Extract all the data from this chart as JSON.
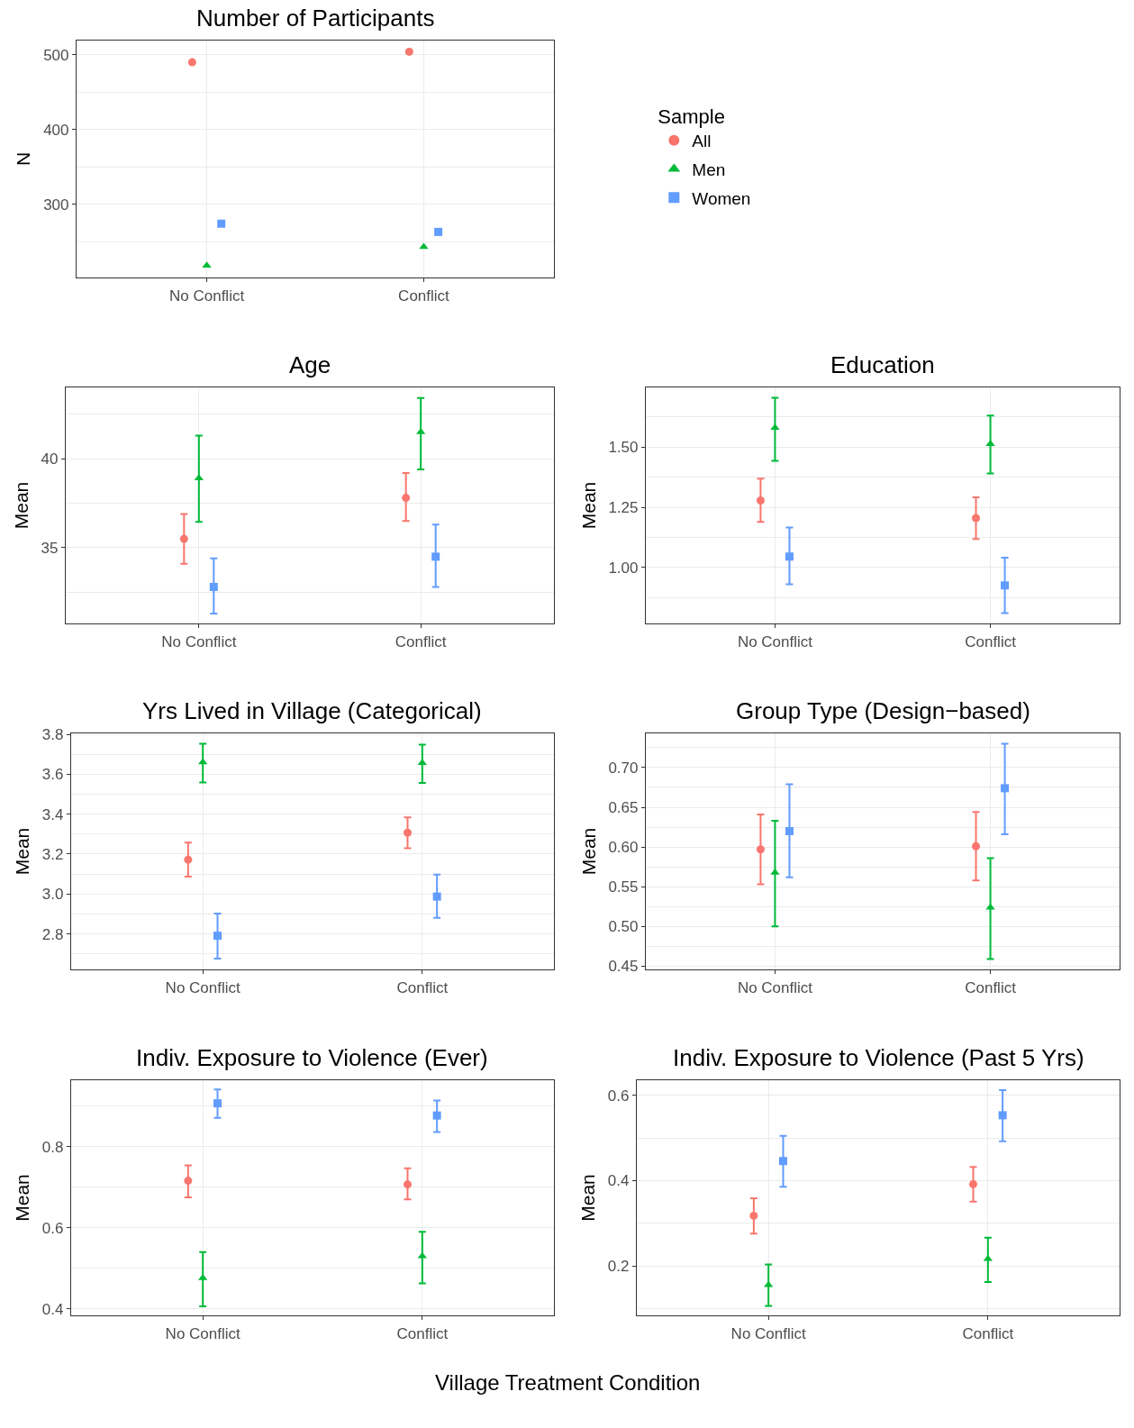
{
  "chart_data": [
    {
      "type": "scatter",
      "title": "Number of Participants",
      "ylabel": "N",
      "categories": [
        "No Conflict",
        "Conflict"
      ],
      "ylim": [
        202,
        519
      ],
      "yticks": [
        300,
        400,
        500
      ],
      "grid": true,
      "legend": "right",
      "legend_title": "Sample",
      "series": [
        {
          "name": "All",
          "color": "#f8766d",
          "marker": "circle",
          "values": [
            490,
            504
          ]
        },
        {
          "name": "Men",
          "color": "#00ba38",
          "marker": "triangle",
          "values": [
            218,
            243
          ]
        },
        {
          "name": "Women",
          "color": "#619cff",
          "marker": "square",
          "values": [
            274,
            263
          ]
        }
      ]
    },
    {
      "type": "scatter",
      "title": "Age",
      "ylabel": "Mean",
      "categories": [
        "No Conflict",
        "Conflict"
      ],
      "ylim": [
        30.75,
        44.0
      ],
      "yticks": [
        35,
        40
      ],
      "grid": true,
      "series": [
        {
          "color": "#f8766d",
          "marker": "circle",
          "values": [
            35.5,
            37.8
          ],
          "errors": [
            [
              34.1,
              36.9
            ],
            [
              36.5,
              39.2
            ]
          ]
        },
        {
          "color": "#00ba38",
          "marker": "triangle",
          "values": [
            38.9,
            41.5
          ],
          "errors": [
            [
              36.45,
              41.3
            ],
            [
              39.4,
              43.4
            ]
          ]
        },
        {
          "color": "#619cff",
          "marker": "square",
          "values": [
            32.8,
            34.5
          ],
          "errors": [
            [
              31.3,
              34.4
            ],
            [
              32.8,
              36.3
            ]
          ]
        }
      ]
    },
    {
      "type": "scatter",
      "title": "Education",
      "ylabel": "Mean",
      "categories": [
        "No Conflict",
        "Conflict"
      ],
      "ylim": [
        0.767,
        1.748
      ],
      "yticks": [
        {
          "value": 1.0,
          "label": "1.00"
        },
        {
          "value": 1.25,
          "label": "1.25"
        },
        {
          "value": 1.5,
          "label": "1.50"
        }
      ],
      "grid": true,
      "series": [
        {
          "color": "#f8766d",
          "marker": "circle",
          "values": [
            1.278,
            1.205
          ],
          "errors": [
            [
              1.189,
              1.369
            ],
            [
              1.118,
              1.291
            ]
          ]
        },
        {
          "color": "#00ba38",
          "marker": "triangle",
          "values": [
            1.58,
            1.513
          ],
          "errors": [
            [
              1.443,
              1.705
            ],
            [
              1.39,
              1.631
            ]
          ]
        },
        {
          "color": "#619cff",
          "marker": "square",
          "values": [
            1.045,
            0.925
          ],
          "errors": [
            [
              0.93,
              1.166
            ],
            [
              0.81,
              1.04
            ]
          ]
        }
      ]
    },
    {
      "type": "scatter",
      "title": "Yrs Lived in Village (Categorical)",
      "ylabel": "Mean",
      "categories": [
        "No Conflict",
        "Conflict"
      ],
      "ylim": [
        2.622,
        3.805
      ],
      "yticks": [
        {
          "value": 2.8,
          "label": "2.8"
        },
        {
          "value": 3.0,
          "label": "3.0"
        },
        {
          "value": 3.2,
          "label": "3.2"
        },
        {
          "value": 3.4,
          "label": "3.4"
        },
        {
          "value": 3.6,
          "label": "3.6"
        },
        {
          "value": 3.8,
          "label": "3.8"
        }
      ],
      "grid": true,
      "series": [
        {
          "color": "#f8766d",
          "marker": "circle",
          "values": [
            3.172,
            3.307
          ],
          "errors": [
            [
              3.087,
              3.258
            ],
            [
              3.229,
              3.384
            ]
          ]
        },
        {
          "color": "#00ba38",
          "marker": "triangle",
          "values": [
            3.661,
            3.657
          ],
          "errors": [
            [
              3.559,
              3.753
            ],
            [
              3.557,
              3.749
            ]
          ]
        },
        {
          "color": "#619cff",
          "marker": "square",
          "values": [
            2.791,
            2.987
          ],
          "errors": [
            [
              2.676,
              2.902
            ],
            [
              2.881,
              3.097
            ]
          ]
        }
      ]
    },
    {
      "type": "scatter",
      "title": "Group Type (Design−based)",
      "ylabel": "Mean",
      "categories": [
        "No Conflict",
        "Conflict"
      ],
      "ylim": [
        0.446,
        0.743
      ],
      "yticks": [
        {
          "value": 0.45,
          "label": "0.45"
        },
        {
          "value": 0.5,
          "label": "0.50"
        },
        {
          "value": 0.55,
          "label": "0.55"
        },
        {
          "value": 0.6,
          "label": "0.60"
        },
        {
          "value": 0.65,
          "label": "0.65"
        },
        {
          "value": 0.7,
          "label": "0.70"
        }
      ],
      "grid": true,
      "series": [
        {
          "color": "#f8766d",
          "marker": "circle",
          "values": [
            0.597,
            0.601
          ],
          "errors": [
            [
              0.553,
              0.641
            ],
            [
              0.558,
              0.644
            ]
          ]
        },
        {
          "color": "#00ba38",
          "marker": "triangle",
          "values": [
            0.568,
            0.524
          ],
          "errors": [
            [
              0.5,
              0.633
            ],
            [
              0.459,
              0.586
            ]
          ]
        },
        {
          "color": "#619cff",
          "marker": "square",
          "values": [
            0.62,
            0.674
          ],
          "errors": [
            [
              0.562,
              0.679
            ],
            [
              0.616,
              0.73
            ]
          ]
        }
      ]
    },
    {
      "type": "scatter",
      "title": "Indiv. Exposure to Violence (Ever)",
      "ylabel": "Mean",
      "categories": [
        "No Conflict",
        "Conflict"
      ],
      "ylim": [
        0.384,
        0.964
      ],
      "yticks": [
        0.4,
        0.6,
        0.8
      ],
      "grid": true,
      "series": [
        {
          "color": "#f8766d",
          "marker": "circle",
          "values": [
            0.716,
            0.707
          ],
          "errors": [
            [
              0.675,
              0.754
            ],
            [
              0.67,
              0.747
            ]
          ]
        },
        {
          "color": "#00ba38",
          "marker": "triangle",
          "values": [
            0.476,
            0.53
          ],
          "errors": [
            [
              0.406,
              0.54
            ],
            [
              0.463,
              0.59
            ]
          ]
        },
        {
          "color": "#619cff",
          "marker": "square",
          "values": [
            0.907,
            0.877
          ],
          "errors": [
            [
              0.871,
              0.941
            ],
            [
              0.836,
              0.914
            ]
          ]
        }
      ]
    },
    {
      "type": "scatter",
      "title": "Indiv. Exposure to Violence (Past 5 Yrs)",
      "ylabel": "Mean",
      "categories": [
        "No Conflict",
        "Conflict"
      ],
      "ylim": [
        0.085,
        0.635
      ],
      "yticks": [
        0.2,
        0.4,
        0.6
      ],
      "grid": true,
      "annotations": [
        "Village Treatment Condition"
      ],
      "series": [
        {
          "color": "#f8766d",
          "marker": "circle",
          "values": [
            0.318,
            0.392
          ],
          "errors": [
            [
              0.276,
              0.359
            ],
            [
              0.351,
              0.432
            ]
          ]
        },
        {
          "color": "#00ba38",
          "marker": "triangle",
          "values": [
            0.156,
            0.217
          ],
          "errors": [
            [
              0.107,
              0.204
            ],
            [
              0.163,
              0.267
            ]
          ]
        },
        {
          "color": "#619cff",
          "marker": "square",
          "values": [
            0.446,
            0.553
          ],
          "errors": [
            [
              0.386,
              0.505
            ],
            [
              0.492,
              0.612
            ]
          ]
        }
      ]
    }
  ]
}
